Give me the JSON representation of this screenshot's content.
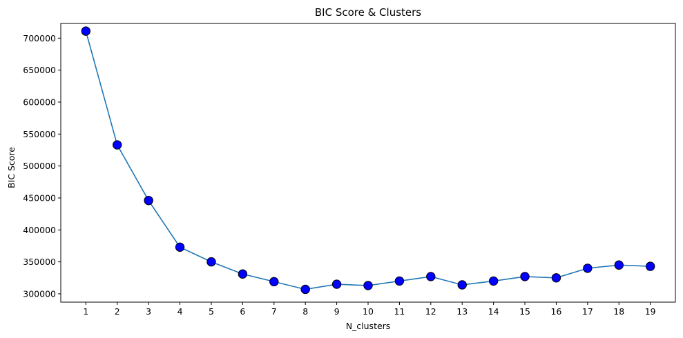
{
  "chart_data": {
    "type": "line",
    "title": "BIC Score & Clusters",
    "xlabel": "N_clusters",
    "ylabel": "BIC Score",
    "x": [
      1,
      2,
      3,
      4,
      5,
      6,
      7,
      8,
      9,
      10,
      11,
      12,
      13,
      14,
      15,
      16,
      17,
      18,
      19
    ],
    "series": [
      {
        "values": [
          711000,
          533000,
          446000,
          373000,
          350000,
          331000,
          319000,
          307000,
          315000,
          313000,
          320000,
          327000,
          314000,
          320000,
          327000,
          325000,
          340000,
          345000,
          343000
        ]
      }
    ],
    "xlim": [
      0.2,
      19.8
    ],
    "ylim": [
      287000,
      723000
    ],
    "xticks": [
      1,
      2,
      3,
      4,
      5,
      6,
      7,
      8,
      9,
      10,
      11,
      12,
      13,
      14,
      15,
      16,
      17,
      18,
      19
    ],
    "yticks": [
      300000,
      350000,
      400000,
      450000,
      500000,
      550000,
      600000,
      650000,
      700000
    ],
    "grid": false,
    "line_color": "#1f77b4",
    "marker_face_color": "#0000ff",
    "marker_edge_color": "#000000"
  }
}
